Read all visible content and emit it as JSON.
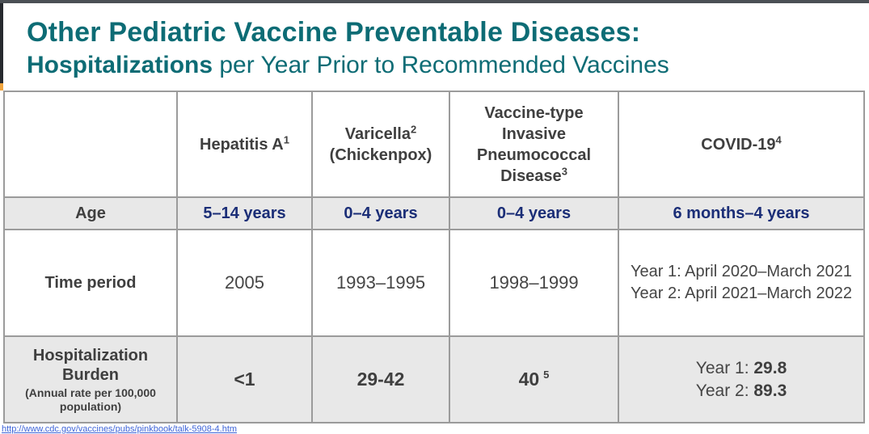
{
  "slide": {
    "title_line1": "Other Pediatric Vaccine Preventable Diseases:",
    "title_line2_bold": "Hospitalizations",
    "title_line2_rest": " per Year Prior to Recommended Vaccines"
  },
  "table": {
    "columns": [
      {
        "label": "Hepatitis A",
        "sup": "1"
      },
      {
        "label": "Varicella",
        "sup": "2",
        "sub_label": "(Chickenpox)"
      },
      {
        "label": "Vaccine-type Invasive Pneumococcal Disease",
        "sup": "3"
      },
      {
        "label": "COVID-19",
        "sup": "4"
      }
    ],
    "rows": {
      "age": {
        "label": "Age",
        "values": [
          "5–14 years",
          "0–4 years",
          "0–4 years",
          "6 months–4 years"
        ]
      },
      "time_period": {
        "label": "Time period",
        "values": [
          "2005",
          "1993–1995",
          "1998–1999"
        ],
        "covid_lines": [
          "Year 1: April 2020–March 2021",
          "Year 2: April 2021–March 2022"
        ]
      },
      "burden": {
        "label": "Hospitalization Burden",
        "label_note": "(Annual rate per 100,000 population)",
        "values": [
          "<1",
          "29-42"
        ],
        "value3": {
          "text": "40",
          "sup": "5"
        },
        "covid": [
          {
            "label": "Year 1: ",
            "value": "29.8"
          },
          {
            "label": "Year 2: ",
            "value": "89.3"
          }
        ]
      }
    }
  },
  "footer": {
    "link": "http://www.cdc.gov/vaccines/pubs/pinkbook/talk-5908-4.htm"
  },
  "colors": {
    "title_teal": "#0d6c75",
    "age_navy": "#1b2e77",
    "row_gray": "#e8e8e8",
    "border_gray": "#9b9b9b",
    "link_blue": "#3e64d8",
    "edge_orange": "#f0a43e",
    "top_bar": "#4b5055",
    "left_bar": "#26292e"
  }
}
